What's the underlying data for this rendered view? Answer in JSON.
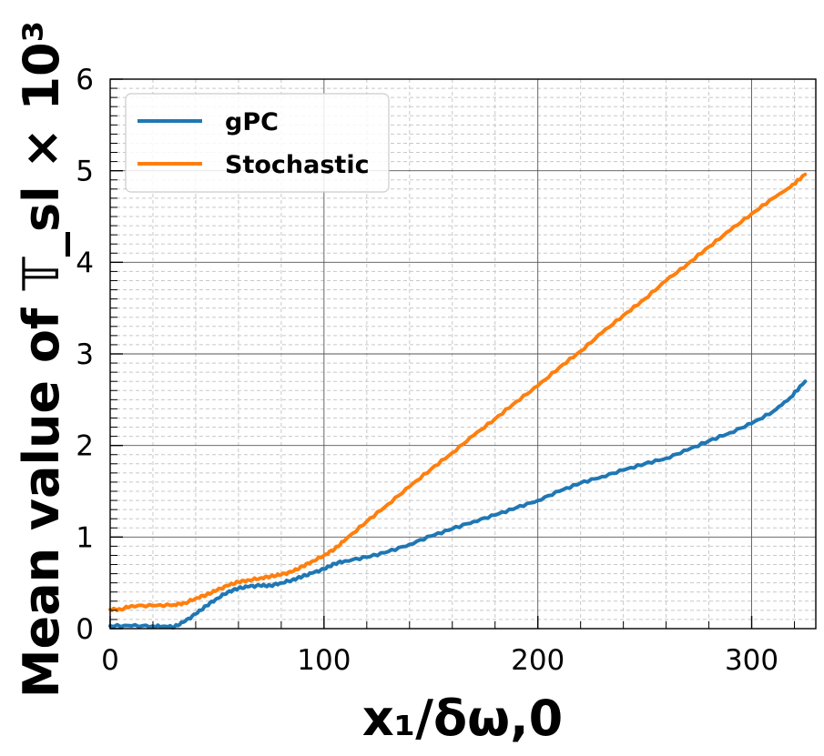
{
  "chart_data": {
    "type": "line",
    "title": "",
    "xlabel": "x₁/δω,0",
    "ylabel": "Mean value of 𝕋_sl × 10³",
    "xlim": [
      0,
      330
    ],
    "ylim": [
      0,
      6
    ],
    "xticks": [
      0,
      100,
      200,
      300
    ],
    "yticks": [
      0,
      1,
      2,
      3,
      4,
      5,
      6
    ],
    "grid": "major solid, minor dashed",
    "legend_position": "top-left",
    "series": [
      {
        "name": "gPC",
        "color": "#1f77b4",
        "x": [
          0,
          10,
          20,
          27,
          30,
          35,
          40,
          45,
          50,
          55,
          60,
          65,
          70,
          75,
          80,
          85,
          90,
          95,
          100,
          105,
          110,
          120,
          130,
          140,
          150,
          160,
          170,
          180,
          190,
          200,
          210,
          220,
          230,
          240,
          250,
          260,
          270,
          280,
          290,
          300,
          310,
          318,
          325
        ],
        "y": [
          0.03,
          0.03,
          0.03,
          0.02,
          0.02,
          0.08,
          0.16,
          0.25,
          0.33,
          0.4,
          0.44,
          0.46,
          0.47,
          0.47,
          0.5,
          0.53,
          0.57,
          0.61,
          0.65,
          0.71,
          0.74,
          0.78,
          0.84,
          0.92,
          1.01,
          1.09,
          1.17,
          1.24,
          1.32,
          1.4,
          1.5,
          1.59,
          1.66,
          1.73,
          1.8,
          1.86,
          1.95,
          2.05,
          2.14,
          2.24,
          2.37,
          2.52,
          2.7
        ]
      },
      {
        "name": "Stochastic",
        "color": "#ff7f0e",
        "x": [
          0,
          5,
          10,
          20,
          30,
          35,
          40,
          45,
          50,
          55,
          60,
          65,
          70,
          75,
          80,
          85,
          90,
          95,
          100,
          105,
          110,
          120,
          130,
          140,
          150,
          160,
          170,
          180,
          190,
          200,
          210,
          220,
          230,
          240,
          250,
          260,
          270,
          280,
          290,
          300,
          310,
          318,
          325
        ],
        "y": [
          0.21,
          0.21,
          0.25,
          0.25,
          0.26,
          0.28,
          0.33,
          0.37,
          0.42,
          0.47,
          0.51,
          0.53,
          0.55,
          0.57,
          0.59,
          0.62,
          0.68,
          0.74,
          0.8,
          0.87,
          0.97,
          1.17,
          1.36,
          1.55,
          1.74,
          1.92,
          2.11,
          2.29,
          2.48,
          2.65,
          2.85,
          3.03,
          3.23,
          3.42,
          3.6,
          3.8,
          3.98,
          4.17,
          4.35,
          4.53,
          4.7,
          4.82,
          4.96
        ]
      }
    ]
  }
}
